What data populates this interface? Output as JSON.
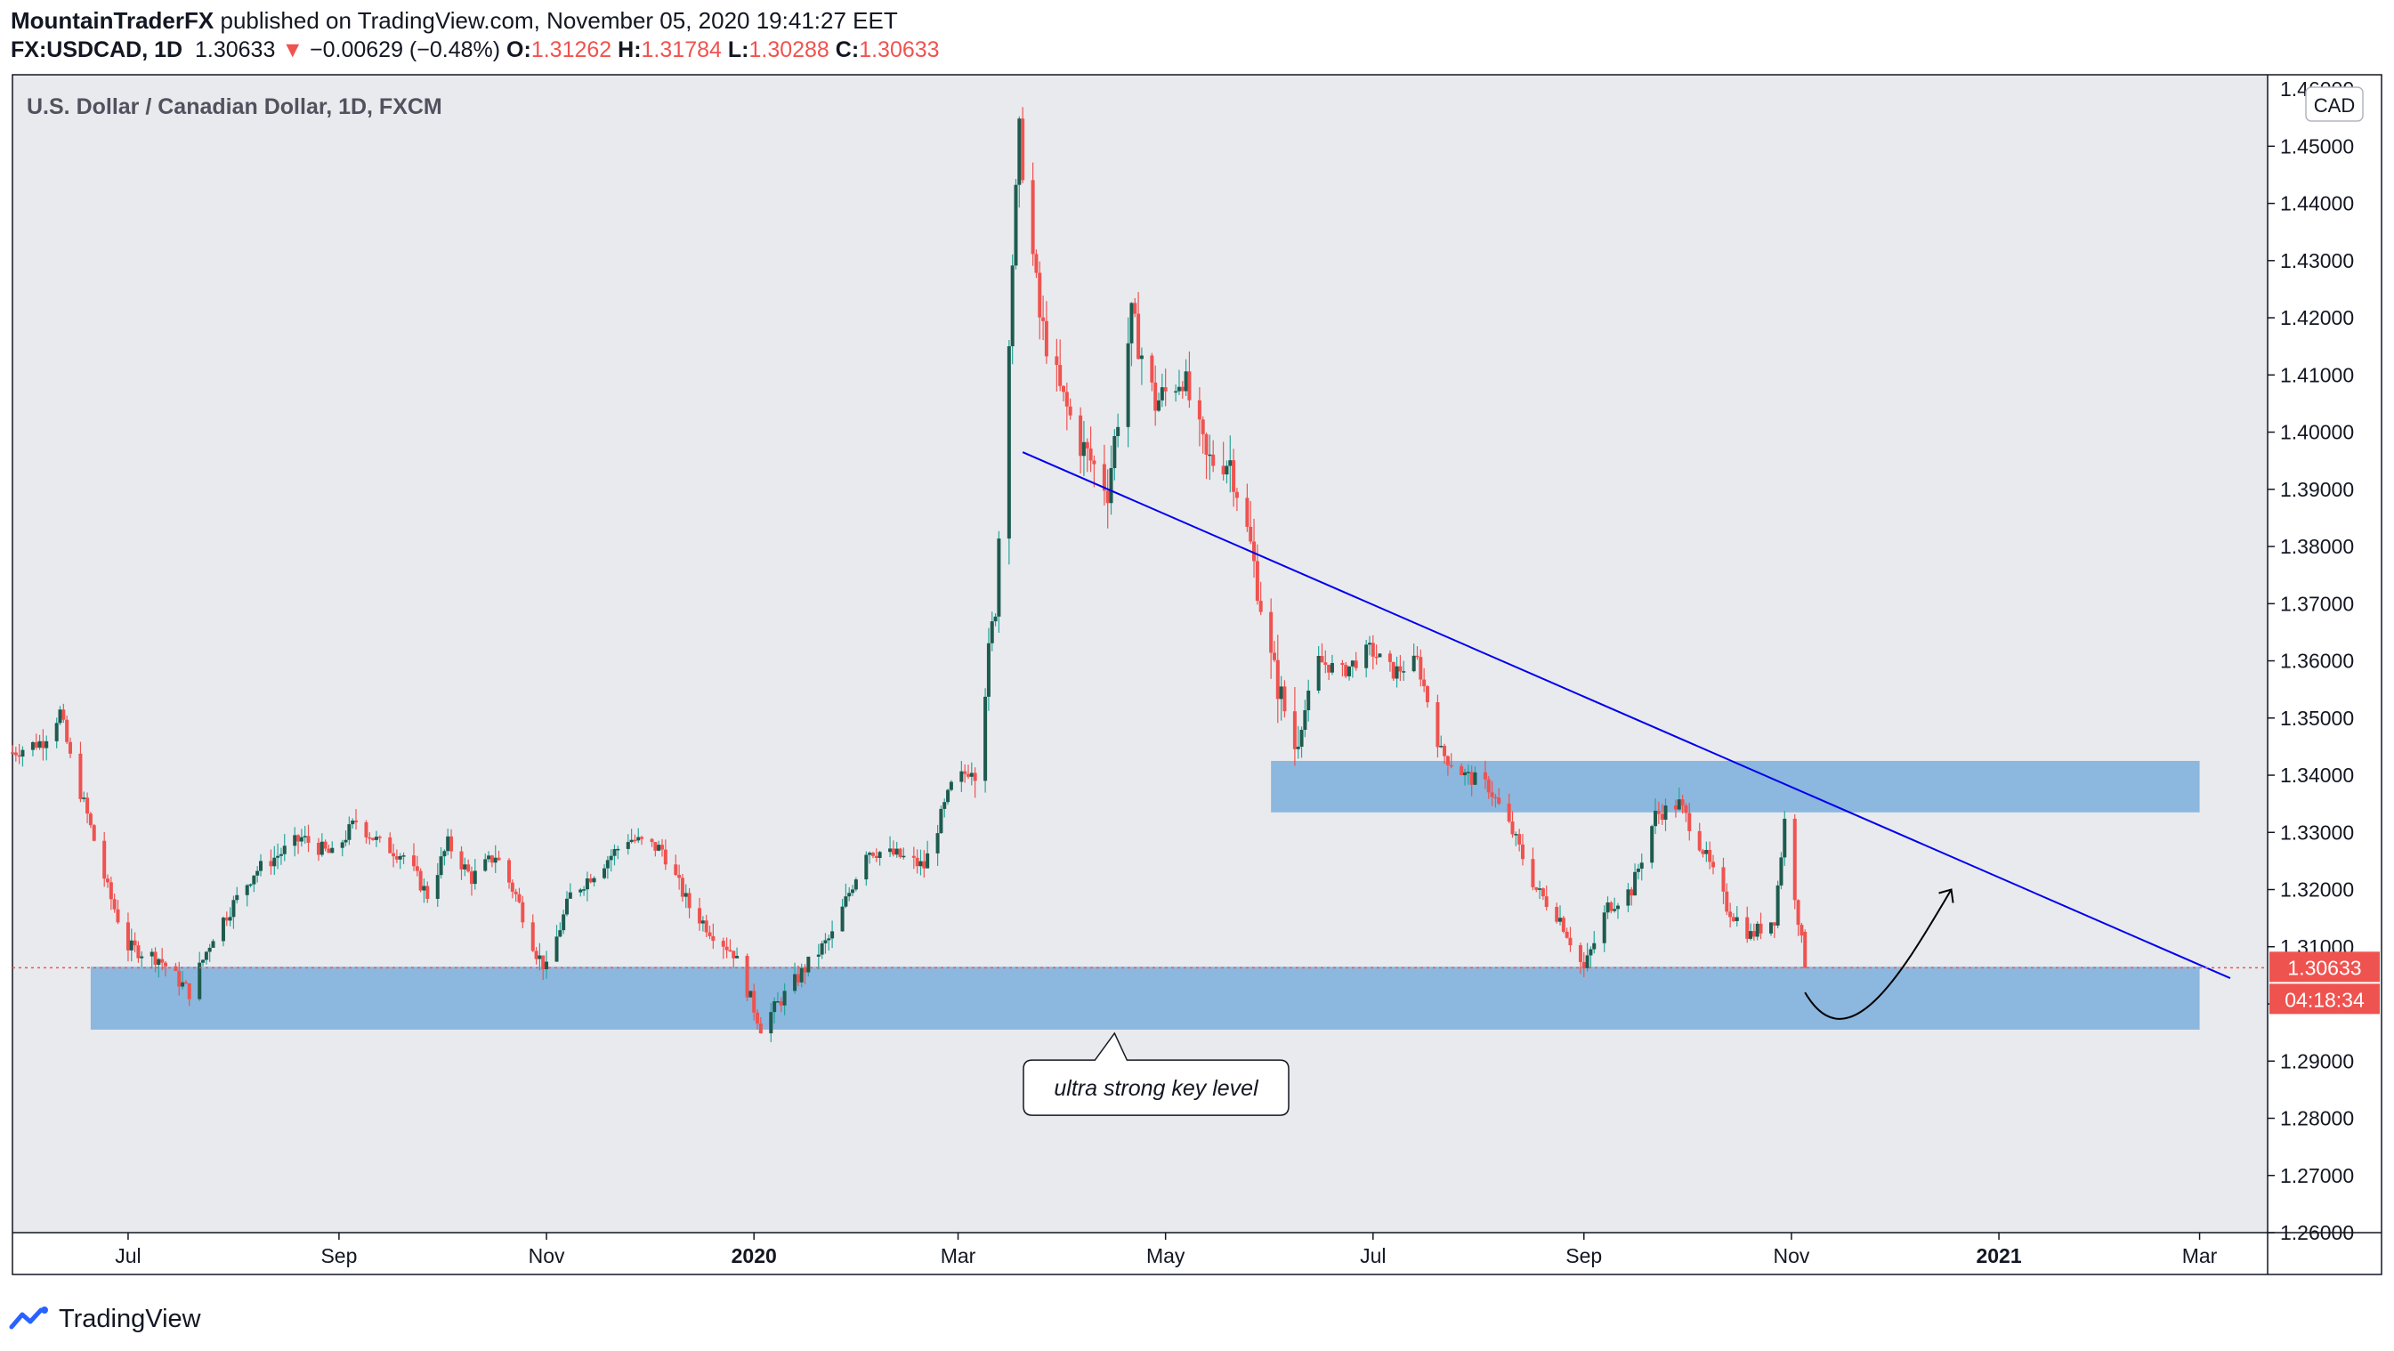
{
  "header": {
    "author": "MountainTraderFX",
    "published_text": "published on TradingView.com, November 05, 2020 19:41:27 EET",
    "symbol": "FX:USDCAD, 1D",
    "last": "1.30633",
    "change_arrow": "▼",
    "change": "−0.00629 (−0.48%)",
    "o_label": "O:",
    "o": "1.31262",
    "h_label": "H:",
    "h": "1.31784",
    "l_label": "L:",
    "l": "1.30288",
    "c_label": "C:",
    "c": "1.30633"
  },
  "footer": {
    "brand": "TradingView",
    "logo_icon": "tradingview-logo-icon"
  },
  "colors": {
    "up": "#26a69a",
    "down": "#ef5350",
    "up_body": "#1e5b4f",
    "zone": "#5b9bd5",
    "trendline": "#0000ee",
    "plot_bg": "#e9eaee"
  },
  "chart_data": {
    "type": "candlestick",
    "title": "U.S. Dollar / Canadian Dollar, 1D, FXCM",
    "currency_badge": "CAD",
    "ylim": [
      1.26,
      1.4625
    ],
    "y_ticks": [
      "1.26000",
      "1.27000",
      "1.28000",
      "1.29000",
      "1.30000",
      "1.31000",
      "1.32000",
      "1.33000",
      "1.34000",
      "1.35000",
      "1.36000",
      "1.37000",
      "1.38000",
      "1.39000",
      "1.40000",
      "1.41000",
      "1.42000",
      "1.43000",
      "1.44000",
      "1.45000"
    ],
    "top_tick_partial": "1.46000",
    "x_ticks": [
      {
        "label": "Jul",
        "date": "2019-07-01",
        "bold": false
      },
      {
        "label": "Sep",
        "date": "2019-09-01",
        "bold": false
      },
      {
        "label": "Nov",
        "date": "2019-11-01",
        "bold": false
      },
      {
        "label": "2020",
        "date": "2020-01-01",
        "bold": true
      },
      {
        "label": "Mar",
        "date": "2020-03-01",
        "bold": false
      },
      {
        "label": "May",
        "date": "2020-05-01",
        "bold": false
      },
      {
        "label": "Jul",
        "date": "2020-07-01",
        "bold": false
      },
      {
        "label": "Sep",
        "date": "2020-09-01",
        "bold": false
      },
      {
        "label": "Nov",
        "date": "2020-11-01",
        "bold": false
      },
      {
        "label": "2021",
        "date": "2021-01-01",
        "bold": true
      },
      {
        "label": "Mar",
        "date": "2021-03-01",
        "bold": false
      }
    ],
    "x_range": [
      "2019-05-28",
      "2021-03-21"
    ],
    "close_path": [
      [
        "2019-05-28",
        1.344
      ],
      [
        "2019-06-06",
        1.346
      ],
      [
        "2019-06-11",
        1.351
      ],
      [
        "2019-06-14",
        1.343
      ],
      [
        "2019-06-19",
        1.333
      ],
      [
        "2019-06-25",
        1.32
      ],
      [
        "2019-07-01",
        1.31
      ],
      [
        "2019-07-10",
        1.308
      ],
      [
        "2019-07-19",
        1.302
      ],
      [
        "2019-07-26",
        1.312
      ],
      [
        "2019-08-07",
        1.323
      ],
      [
        "2019-08-21",
        1.329
      ],
      [
        "2019-08-30",
        1.326
      ],
      [
        "2019-09-06",
        1.332
      ],
      [
        "2019-09-13",
        1.328
      ],
      [
        "2019-09-20",
        1.326
      ],
      [
        "2019-09-27",
        1.319
      ],
      [
        "2019-10-03",
        1.328
      ],
      [
        "2019-10-10",
        1.322
      ],
      [
        "2019-10-17",
        1.326
      ],
      [
        "2019-10-23",
        1.319
      ],
      [
        "2019-10-29",
        1.309
      ],
      [
        "2019-11-01",
        1.306
      ],
      [
        "2019-11-08",
        1.319
      ],
      [
        "2019-11-15",
        1.323
      ],
      [
        "2019-11-25",
        1.329
      ],
      [
        "2019-12-05",
        1.327
      ],
      [
        "2019-12-13",
        1.317
      ],
      [
        "2019-12-19",
        1.313
      ],
      [
        "2019-12-26",
        1.309
      ],
      [
        "2020-01-03",
        1.296
      ],
      [
        "2020-01-08",
        1.3
      ],
      [
        "2020-01-17",
        1.307
      ],
      [
        "2020-01-24",
        1.312
      ],
      [
        "2020-02-03",
        1.327
      ],
      [
        "2020-02-12",
        1.326
      ],
      [
        "2020-02-20",
        1.324
      ],
      [
        "2020-02-28",
        1.338
      ],
      [
        "2020-03-06",
        1.342
      ],
      [
        "2020-03-12",
        1.37
      ],
      [
        "2020-03-17",
        1.43
      ],
      [
        "2020-03-19",
        1.452
      ],
      [
        "2020-03-25",
        1.42
      ],
      [
        "2020-03-31",
        1.407
      ],
      [
        "2020-04-06",
        1.398
      ],
      [
        "2020-04-14",
        1.39
      ],
      [
        "2020-04-21",
        1.42
      ],
      [
        "2020-04-28",
        1.405
      ],
      [
        "2020-05-06",
        1.41
      ],
      [
        "2020-05-13",
        1.395
      ],
      [
        "2020-05-20",
        1.395
      ],
      [
        "2020-05-26",
        1.38
      ],
      [
        "2020-06-01",
        1.36
      ],
      [
        "2020-06-08",
        1.345
      ],
      [
        "2020-06-15",
        1.36
      ],
      [
        "2020-06-22",
        1.358
      ],
      [
        "2020-06-30",
        1.362
      ],
      [
        "2020-07-07",
        1.358
      ],
      [
        "2020-07-14",
        1.36
      ],
      [
        "2020-07-21",
        1.344
      ],
      [
        "2020-07-28",
        1.34
      ],
      [
        "2020-08-04",
        1.338
      ],
      [
        "2020-08-11",
        1.33
      ],
      [
        "2020-08-18",
        1.32
      ],
      [
        "2020-08-25",
        1.315
      ],
      [
        "2020-09-01",
        1.306
      ],
      [
        "2020-09-08",
        1.317
      ],
      [
        "2020-09-15",
        1.32
      ],
      [
        "2020-09-22",
        1.333
      ],
      [
        "2020-09-29",
        1.335
      ],
      [
        "2020-10-06",
        1.327
      ],
      [
        "2020-10-13",
        1.317
      ],
      [
        "2020-10-20",
        1.312
      ],
      [
        "2020-10-27",
        1.315
      ],
      [
        "2020-10-30",
        1.332
      ],
      [
        "2020-11-03",
        1.315
      ],
      [
        "2020-11-05",
        1.3063
      ]
    ],
    "annotations": {
      "supply_zone": {
        "from": "2020-06-01",
        "to": "2021-03-01",
        "low": 1.3335,
        "high": 1.3425
      },
      "key_level_zone": {
        "from": "2019-06-20",
        "to": "2021-03-01",
        "low": 1.2955,
        "high": 1.3065
      },
      "trendline": {
        "x1": "2020-03-20",
        "y1": 1.3965,
        "x2": "2021-03-10",
        "y2": 1.3045
      },
      "projection": {
        "points": [
          [
            "2020-11-05",
            1.302
          ],
          [
            "2020-11-18",
            1.2965
          ],
          [
            "2020-12-05",
            1.307
          ],
          [
            "2020-12-18",
            1.32
          ]
        ]
      },
      "callout": {
        "text": "ultra strong key level",
        "anchor_date": "2020-04-16",
        "anchor_price": 1.2955,
        "box_price": 1.2855
      },
      "last_price_line": 1.30633
    },
    "price_label": "1.30633",
    "countdown_label": "04:18:34"
  }
}
